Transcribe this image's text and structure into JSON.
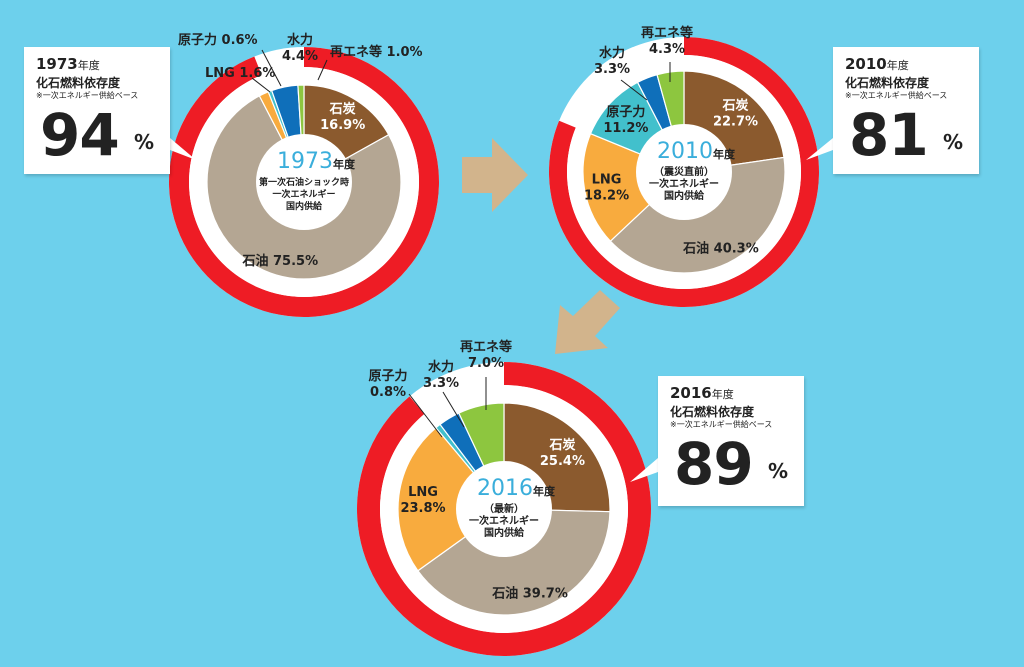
{
  "colors": {
    "background": "#6dd0ec",
    "fossil_ring": "#ee1c25",
    "coal": "#8b5a2e",
    "oil": "#b4a693",
    "lng": "#f8ab3e",
    "nuclear": "#42c0cc",
    "hydro": "#0f6fba",
    "renewables": "#8dc63f",
    "arrow": "#d2b48c"
  },
  "chart_data": [
    {
      "type": "pie",
      "year_label": "1973",
      "year_unit": "年度",
      "center_lines": [
        "第一次石油ショック時",
        "一次エネルギー",
        "国内供給"
      ],
      "slices": [
        {
          "key": "coal",
          "value": 16.9,
          "label": "石炭",
          "value_text": "16.9%"
        },
        {
          "key": "oil",
          "value": 75.5,
          "label": "石油",
          "value_text": "75.5%"
        },
        {
          "key": "lng",
          "value": 1.6,
          "label": "LNG",
          "value_text": "1.6%"
        },
        {
          "key": "nuclear",
          "value": 0.6,
          "label": "原子力",
          "value_text": "0.6%"
        },
        {
          "key": "hydro",
          "value": 4.4,
          "label": "水力",
          "value_text": "4.4%"
        },
        {
          "key": "renewables",
          "value": 1.0,
          "label": "再エネ等",
          "value_text": "1.0%"
        }
      ],
      "fossil_dependency": 94
    },
    {
      "type": "pie",
      "year_label": "2010",
      "year_unit": "年度",
      "center_lines": [
        "（震災直前）",
        "一次エネルギー",
        "国内供給"
      ],
      "slices": [
        {
          "key": "coal",
          "value": 22.7,
          "label": "石炭",
          "value_text": "22.7%"
        },
        {
          "key": "oil",
          "value": 40.3,
          "label": "石油",
          "value_text": "40.3%"
        },
        {
          "key": "lng",
          "value": 18.2,
          "label": "LNG",
          "value_text": "18.2%"
        },
        {
          "key": "nuclear",
          "value": 11.2,
          "label": "原子力",
          "value_text": "11.2%"
        },
        {
          "key": "hydro",
          "value": 3.3,
          "label": "水力",
          "value_text": "3.3%"
        },
        {
          "key": "renewables",
          "value": 4.3,
          "label": "再エネ等",
          "value_text": "4.3%"
        }
      ],
      "fossil_dependency": 81
    },
    {
      "type": "pie",
      "year_label": "2016",
      "year_unit": "年度",
      "center_lines": [
        "（最新）",
        "一次エネルギー",
        "国内供給"
      ],
      "slices": [
        {
          "key": "coal",
          "value": 25.4,
          "label": "石炭",
          "value_text": "25.4%"
        },
        {
          "key": "oil",
          "value": 39.7,
          "label": "石油",
          "value_text": "39.7%"
        },
        {
          "key": "lng",
          "value": 23.8,
          "label": "LNG",
          "value_text": "23.8%"
        },
        {
          "key": "nuclear",
          "value": 0.8,
          "label": "原子力",
          "value_text": "0.8%"
        },
        {
          "key": "hydro",
          "value": 3.3,
          "label": "水力",
          "value_text": "3.3%"
        },
        {
          "key": "renewables",
          "value": 7.0,
          "label": "再エネ等",
          "value_text": "7.0%"
        }
      ],
      "fossil_dependency": 89
    }
  ],
  "callouts": [
    {
      "year": "1973",
      "year_unit": "年度",
      "title": "化石燃料依存度",
      "note": "※一次エネルギー供給ベース",
      "value": "94",
      "unit": "%"
    },
    {
      "year": "2010",
      "year_unit": "年度",
      "title": "化石燃料依存度",
      "note": "※一次エネルギー供給ベース",
      "value": "81",
      "unit": "%"
    },
    {
      "year": "2016",
      "year_unit": "年度",
      "title": "化石燃料依存度",
      "note": "※一次エネルギー供給ベース",
      "value": "89",
      "unit": "%"
    }
  ]
}
